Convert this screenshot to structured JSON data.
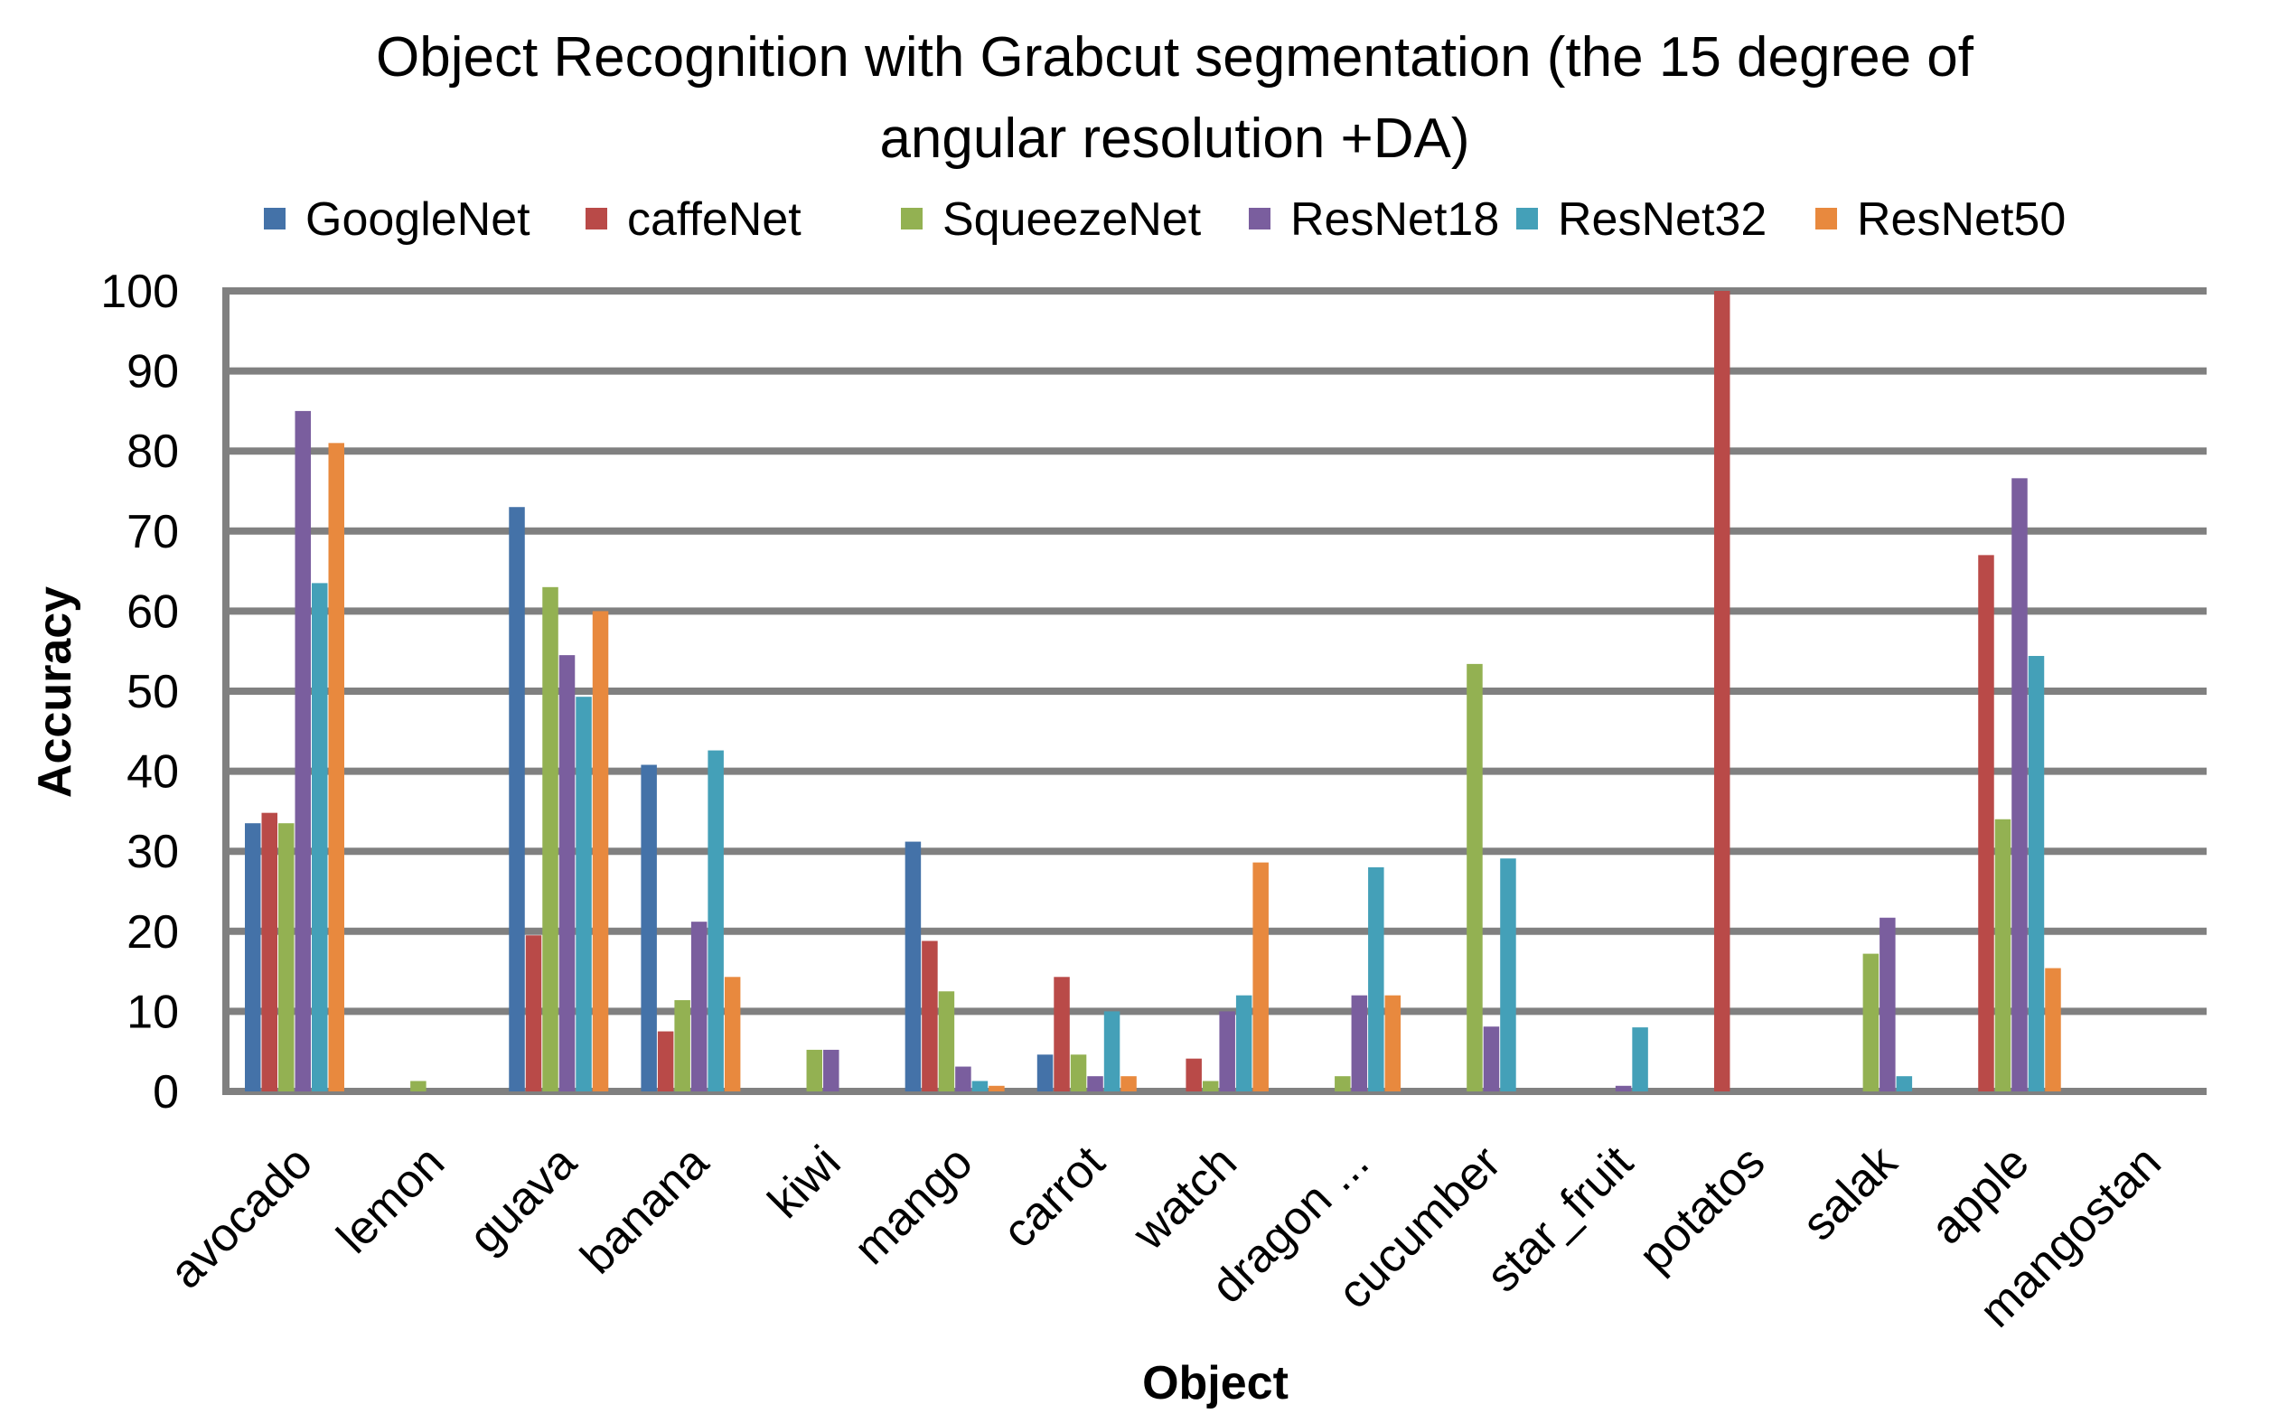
{
  "chart_data": {
    "type": "bar",
    "title_lines": [
      "Object Recognition with Grabcut segmentation (the 15 degree of",
      "angular resolution +DA)"
    ],
    "xlabel": "Object",
    "ylabel": "Accuracy",
    "ylim": [
      0,
      100
    ],
    "yticks": [
      "0",
      "10",
      "20",
      "30",
      "40",
      "50",
      "60",
      "70",
      "80",
      "90",
      "100"
    ],
    "grid": true,
    "legend_position": "top",
    "categories": [
      "avocado",
      "lemon",
      "guava",
      "banana",
      "kiwi",
      "mango",
      "carrot",
      "watch",
      "dragon ...",
      "cucumber",
      "star_fruit",
      "potatos",
      "salak",
      "apple",
      "mangostan"
    ],
    "series": [
      {
        "name": "GoogleNet",
        "color": "#4472a8",
        "values": [
          33.5,
          0,
          73,
          40.8,
          0,
          31.2,
          4.6,
          0,
          0,
          0,
          0,
          0,
          0,
          0,
          0
        ]
      },
      {
        "name": "caffeNet",
        "color": "#b94a48",
        "values": [
          34.8,
          0,
          19.5,
          7.5,
          0,
          18.8,
          14.3,
          4.1,
          0,
          0,
          0,
          100,
          0,
          67,
          0
        ]
      },
      {
        "name": "SqueezeNet",
        "color": "#93b152",
        "values": [
          33.5,
          1.3,
          63,
          11.4,
          5.2,
          12.5,
          4.6,
          1.3,
          1.9,
          53.4,
          0,
          0,
          17.2,
          34,
          0
        ]
      },
      {
        "name": "ResNet18",
        "color": "#7a5e9e",
        "values": [
          85,
          0,
          54.5,
          21.2,
          5.2,
          3.1,
          1.9,
          10,
          12,
          8.1,
          0.7,
          0,
          21.7,
          76.6,
          0
        ]
      },
      {
        "name": "ResNet32",
        "color": "#44a0b8",
        "values": [
          63.5,
          0,
          49.3,
          42.6,
          0,
          1.3,
          10,
          12,
          28,
          29.1,
          8,
          0,
          1.9,
          54.4,
          0
        ]
      },
      {
        "name": "ResNet50",
        "color": "#e8893e",
        "values": [
          81,
          0,
          60,
          14.3,
          0,
          0.7,
          1.9,
          28.6,
          12,
          0,
          0,
          0,
          0,
          15.4,
          0
        ]
      }
    ]
  }
}
